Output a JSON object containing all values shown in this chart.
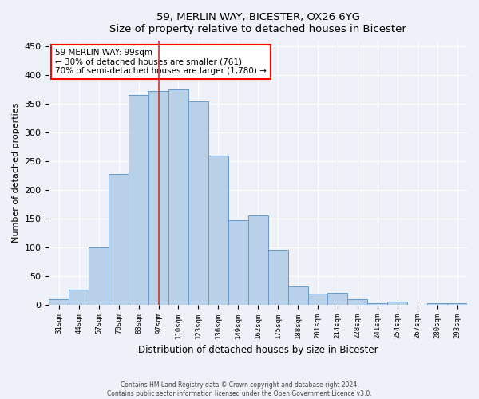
{
  "title1": "59, MERLIN WAY, BICESTER, OX26 6YG",
  "title2": "Size of property relative to detached houses in Bicester",
  "xlabel": "Distribution of detached houses by size in Bicester",
  "ylabel": "Number of detached properties",
  "categories": [
    "31sqm",
    "44sqm",
    "57sqm",
    "70sqm",
    "83sqm",
    "97sqm",
    "110sqm",
    "123sqm",
    "136sqm",
    "149sqm",
    "162sqm",
    "175sqm",
    "188sqm",
    "201sqm",
    "214sqm",
    "228sqm",
    "241sqm",
    "254sqm",
    "267sqm",
    "280sqm",
    "293sqm"
  ],
  "values": [
    10,
    26,
    100,
    228,
    365,
    373,
    375,
    355,
    260,
    147,
    155,
    95,
    31,
    19,
    20,
    10,
    3,
    5,
    0,
    3,
    2
  ],
  "bar_color": "#b8d0e8",
  "bar_edge_color": "#6699cc",
  "vline_x": 5,
  "annotation_text": "59 MERLIN WAY: 99sqm\n← 30% of detached houses are smaller (761)\n70% of semi-detached houses are larger (1,780) →",
  "annotation_box_color": "white",
  "annotation_box_edge_color": "red",
  "vline_color": "#cc3333",
  "ylim": [
    0,
    460
  ],
  "yticks": [
    0,
    50,
    100,
    150,
    200,
    250,
    300,
    350,
    400,
    450
  ],
  "footer1": "Contains HM Land Registry data © Crown copyright and database right 2024.",
  "footer2": "Contains public sector information licensed under the Open Government Licence v3.0.",
  "bg_color": "#eef2f8",
  "grid_color": "white"
}
